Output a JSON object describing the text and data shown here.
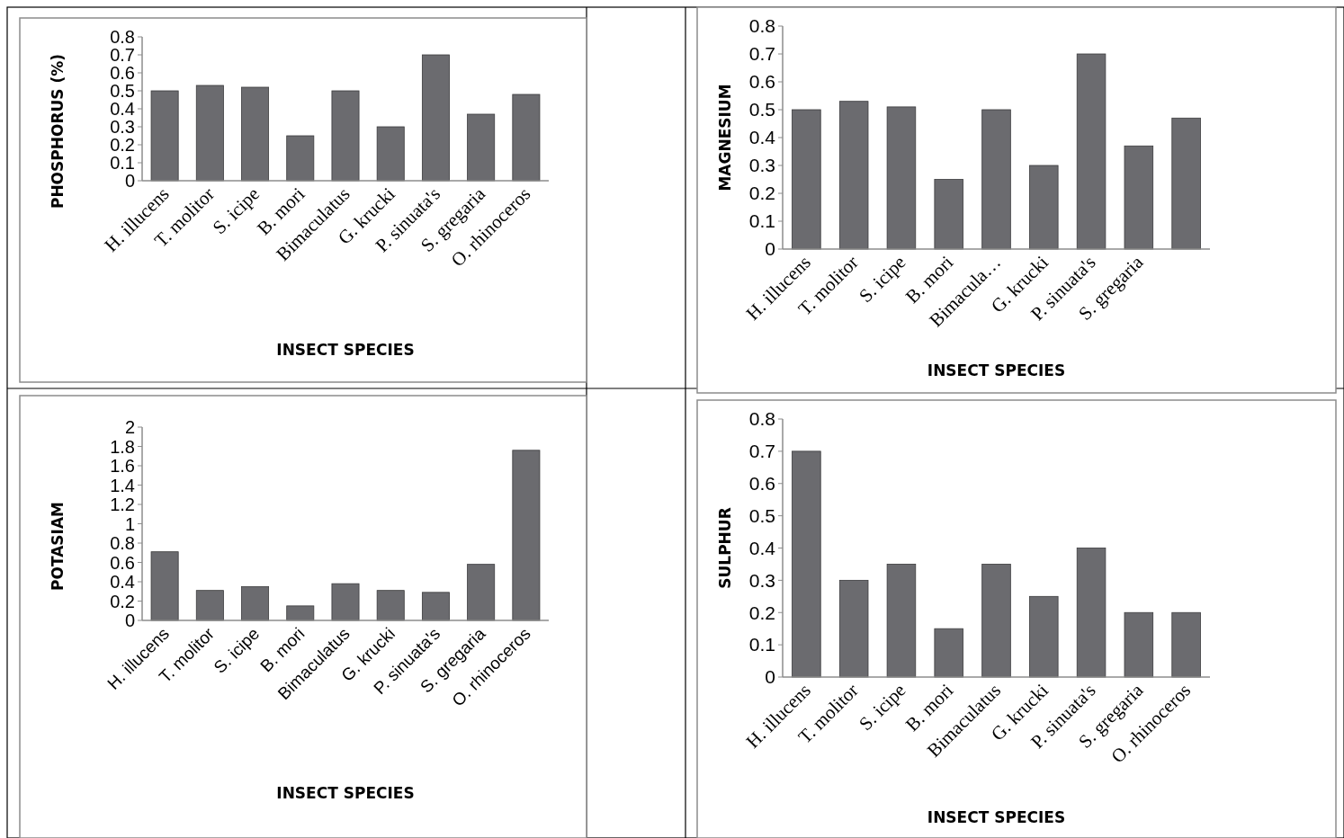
{
  "chart_data": [
    {
      "type": "bar",
      "xlabel": "INSECT SPECIES",
      "ylabel": "PHOSPHORUS (%)",
      "categories": [
        "H. illucens",
        "T. molitor",
        "S. icipe",
        "B. mori",
        "Bimaculatus",
        "G. krucki",
        "P. sinuata's",
        "S. gregaria",
        "O. rhinoceros"
      ],
      "values": [
        0.5,
        0.53,
        0.52,
        0.25,
        0.5,
        0.3,
        0.7,
        0.37,
        0.48
      ],
      "color": "#6b6b6f",
      "ylim": [
        0,
        0.8
      ],
      "yticks": [
        0,
        0.1,
        0.2,
        0.3,
        0.4,
        0.5,
        0.6,
        0.7,
        0.8
      ],
      "grid": false
    },
    {
      "type": "bar",
      "xlabel": "INSECT SPECIES",
      "ylabel": "MAGNESIUM",
      "categories": [
        "H. illucens",
        "T. molitor",
        "S. icipe",
        "B. mori",
        "Bimacula…",
        "G. krucki",
        "P. sinuata's",
        "S. gregaria",
        null
      ],
      "values": [
        0.5,
        0.53,
        0.51,
        0.25,
        0.5,
        0.3,
        0.7,
        0.37,
        0.47
      ],
      "color": "#6b6b6f",
      "ylim": [
        0,
        0.8
      ],
      "yticks": [
        0,
        0.1,
        0.2,
        0.3,
        0.4,
        0.5,
        0.6,
        0.7,
        0.8
      ],
      "grid": false
    },
    {
      "type": "bar",
      "xlabel": "INSECT SPECIES",
      "ylabel": "POTASIAM",
      "categories": [
        "H. illucens",
        "T. molitor",
        "S. icipe",
        "B. mori",
        "Bimaculatus",
        "G. krucki",
        "P. sinuata's",
        "S. gregaria",
        "O. rhinoceros"
      ],
      "values": [
        0.71,
        0.31,
        0.35,
        0.15,
        0.38,
        0.31,
        0.29,
        0.58,
        1.76
      ],
      "color": "#6b6b6f",
      "ylim": [
        0,
        2
      ],
      "yticks": [
        0,
        0.2,
        0.4,
        0.6,
        0.8,
        1,
        1.2,
        1.4,
        1.6,
        1.8,
        2
      ],
      "grid": false
    },
    {
      "type": "bar",
      "xlabel": "INSECT SPECIES",
      "ylabel": "SULPHUR",
      "categories": [
        "H. illucens",
        "T. molitor",
        "S. icipe",
        "B. mori",
        "Bimaculatus",
        "G. krucki",
        "P. sinuata's",
        "S. gregaria",
        "O. rhinoceros"
      ],
      "values": [
        0.7,
        0.3,
        0.35,
        0.15,
        0.35,
        0.25,
        0.4,
        0.2,
        0.2
      ],
      "color": "#6b6b6f",
      "ylim": [
        0,
        0.8
      ],
      "yticks": [
        0,
        0.1,
        0.2,
        0.3,
        0.4,
        0.5,
        0.6,
        0.7,
        0.8
      ],
      "grid": false
    }
  ]
}
